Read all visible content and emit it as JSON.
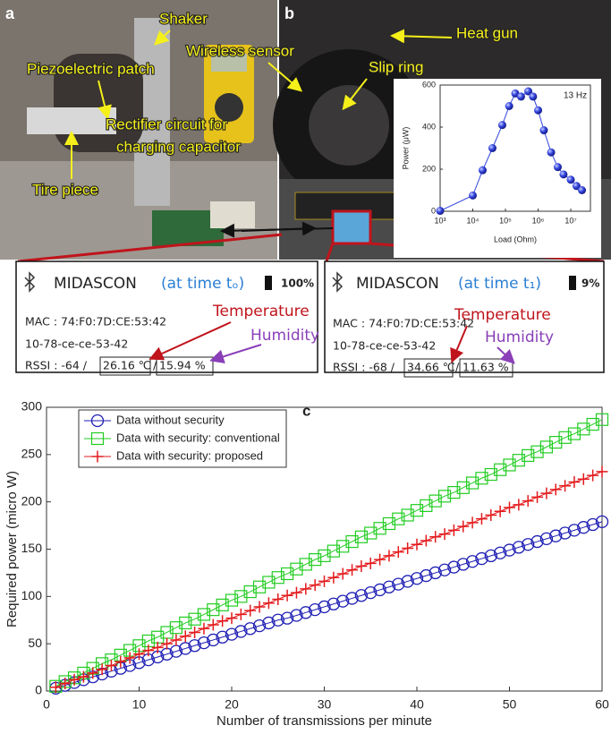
{
  "panels": {
    "a": {
      "label": "a",
      "annotations": [
        "Shaker",
        "Piezoelectric patch",
        "Rectifier circuit for",
        "charging capacitor",
        "Tire piece"
      ]
    },
    "b": {
      "label": "b",
      "annotations": [
        "Heat gun",
        "Wireless sensor",
        "Slip ring"
      ]
    }
  },
  "screens": [
    {
      "app": "MIDASCON",
      "time": "(at time tₒ)",
      "battery": "100%",
      "mac": "MAC : 74:F0:7D:CE:53:42",
      "id": "10-78-ce-ce-53-42",
      "rssi": "RSSI : -64 /",
      "temperature": "26.16 ℃",
      "separator": "/",
      "humidity": "15.94 %",
      "temperature_label": "Temperature",
      "humidity_label": "Humidity"
    },
    {
      "app": "MIDASCON",
      "time": "(at time t₁)",
      "battery": "9%",
      "mac": "MAC : 74:F0:7D:CE:53:42",
      "id": "10-78-ce-ce-53-42",
      "rssi": "RSSI : -68 /",
      "temperature": "34.66 ℃",
      "separator": "/",
      "humidity": "11.63 %",
      "temperature_label": "Temperature",
      "humidity_label": "Humidity"
    }
  ],
  "chart_data": [
    {
      "type": "line",
      "annotation": "13 Hz",
      "x_label": "Load (Ohm)",
      "y_label": "Power (μW)",
      "log_x": true,
      "x": [
        1000,
        10000,
        20000,
        40000,
        80000,
        130000,
        200000,
        300000,
        500000,
        700000,
        1000000,
        1500000,
        2500000,
        4000000,
        6000000,
        10000000,
        15000000,
        22000000
      ],
      "series": [
        {
          "color": "#3344dd",
          "marker": "sphere",
          "values": [
            2,
            75,
            195,
            300,
            410,
            500,
            560,
            545,
            570,
            545,
            480,
            385,
            280,
            210,
            175,
            150,
            120,
            100
          ]
        }
      ],
      "xlim": [
        1000,
        40000000
      ],
      "xticks": [
        {
          "value": 1000,
          "label": "10³"
        },
        {
          "value": 10000,
          "label": "10⁴"
        },
        {
          "value": 100000,
          "label": "10⁵"
        },
        {
          "value": 1000000,
          "label": "10⁶"
        },
        {
          "value": 10000000,
          "label": "10⁷"
        }
      ],
      "ylim": [
        0,
        600
      ],
      "yticks": [
        0,
        200,
        400,
        600
      ]
    },
    {
      "type": "line",
      "panel_label": "c",
      "x_label": "Number of transmissions per minute",
      "y_label": "Required power (micro W)",
      "x": [
        1,
        2,
        3,
        4,
        5,
        6,
        7,
        8,
        9,
        10,
        11,
        12,
        13,
        14,
        15,
        16,
        17,
        18,
        19,
        20,
        21,
        22,
        23,
        24,
        25,
        26,
        27,
        28,
        29,
        30,
        31,
        32,
        33,
        34,
        35,
        36,
        37,
        38,
        39,
        40,
        41,
        42,
        43,
        44,
        45,
        46,
        47,
        48,
        49,
        50,
        51,
        52,
        53,
        54,
        55,
        56,
        57,
        58,
        59,
        60
      ],
      "series": [
        {
          "name": "Data without security",
          "color": "#1f1fb4",
          "marker": "circle",
          "values": [
            3,
            6,
            9,
            12,
            15,
            18,
            21,
            24,
            27,
            30,
            33,
            36,
            39,
            42,
            45,
            48,
            51,
            54,
            57,
            60,
            63,
            66,
            69,
            72,
            75,
            77,
            80,
            83,
            86,
            89,
            92,
            95,
            98,
            101,
            104,
            107,
            110,
            113,
            116,
            119,
            122,
            125,
            128,
            131,
            134,
            137,
            140,
            143,
            146,
            149,
            152,
            155,
            158,
            161,
            164,
            167,
            170,
            173,
            176,
            179
          ]
        },
        {
          "name": "Data with security: conventional",
          "color": "#22cc22",
          "marker": "square",
          "values": [
            5,
            10,
            14,
            19,
            24,
            29,
            33,
            38,
            43,
            48,
            53,
            57,
            62,
            67,
            72,
            76,
            81,
            86,
            91,
            96,
            100,
            105,
            110,
            115,
            120,
            124,
            129,
            134,
            139,
            143,
            148,
            153,
            158,
            163,
            167,
            172,
            177,
            182,
            186,
            191,
            196,
            201,
            206,
            210,
            215,
            220,
            225,
            229,
            234,
            239,
            244,
            249,
            253,
            258,
            263,
            268,
            272,
            277,
            282,
            287
          ]
        },
        {
          "name": "Data with security: proposed",
          "color": "#e41a1c",
          "marker": "plus",
          "values": [
            4,
            8,
            12,
            15,
            19,
            23,
            27,
            31,
            35,
            39,
            43,
            46,
            50,
            54,
            58,
            62,
            66,
            70,
            74,
            77,
            81,
            85,
            89,
            93,
            97,
            101,
            104,
            108,
            112,
            116,
            120,
            124,
            128,
            132,
            135,
            139,
            143,
            147,
            151,
            155,
            159,
            163,
            166,
            170,
            174,
            178,
            182,
            186,
            190,
            194,
            197,
            201,
            205,
            209,
            213,
            217,
            221,
            224,
            228,
            232
          ]
        }
      ],
      "xlim": [
        0,
        60
      ],
      "xticks": [
        0,
        10,
        20,
        30,
        40,
        50,
        60
      ],
      "ylim": [
        0,
        300
      ],
      "yticks": [
        0,
        50,
        100,
        150,
        200,
        250,
        300
      ],
      "legend": "upper left"
    }
  ]
}
